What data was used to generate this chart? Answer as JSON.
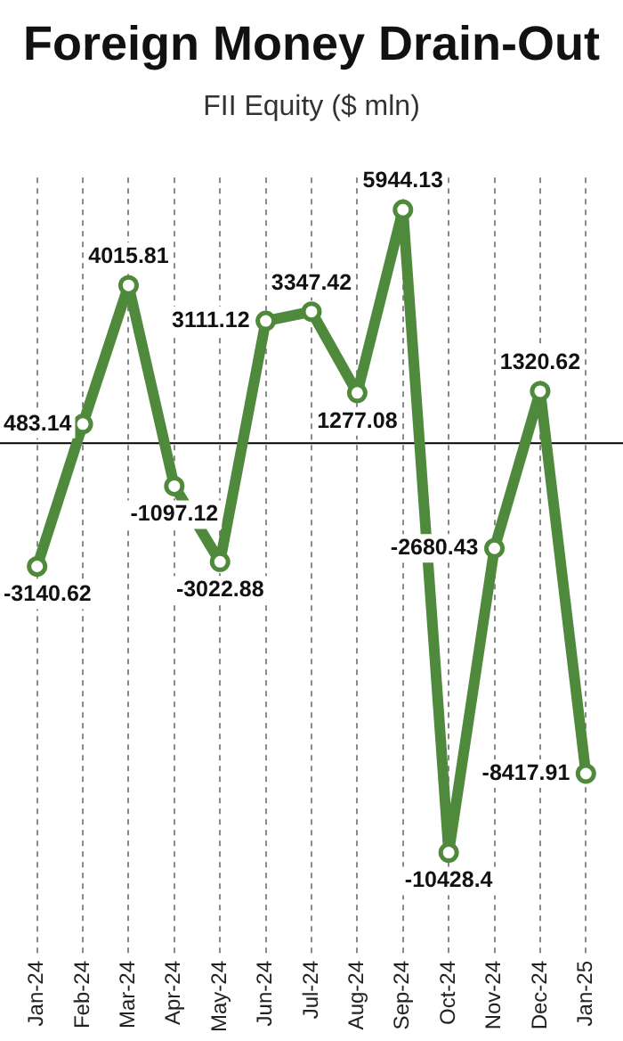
{
  "chart_data": {
    "type": "line",
    "title": "Foreign Money Drain-Out",
    "subtitle": "FII Equity ($ mln)",
    "categories": [
      "Jan-24",
      "Feb-24",
      "Mar-24",
      "Apr-24",
      "May-24",
      "Jun-24",
      "Jul-24",
      "Aug-24",
      "Sep-24",
      "Oct-24",
      "Nov-24",
      "Dec-24",
      "Jan-25"
    ],
    "series": [
      {
        "color": "#4f8a3c",
        "values": [
          -3140.62,
          483.14,
          4015.81,
          -1097.12,
          -3022.88,
          3111.12,
          3347.42,
          1277.08,
          5944.13,
          -10428.4,
          -2680.43,
          1320.62,
          -8417.91
        ]
      }
    ],
    "data_labels": true,
    "marker": "circle",
    "grid": "x",
    "legend": false,
    "ref_lines": [
      {
        "axis": "y",
        "value": 0,
        "color": "#000000"
      }
    ]
  }
}
